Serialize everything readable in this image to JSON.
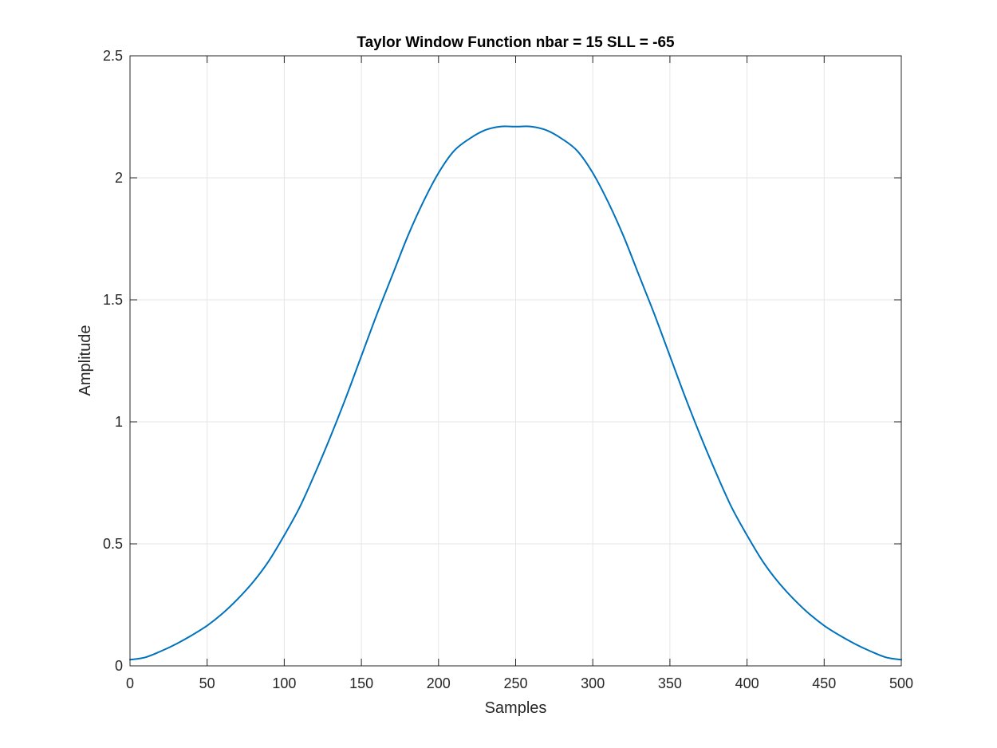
{
  "chart_data": {
    "type": "line",
    "title": "Taylor Window Function nbar = 15 SLL = -65",
    "xlabel": "Samples",
    "ylabel": "Amplitude",
    "xlim": [
      0,
      500
    ],
    "ylim": [
      0,
      2.5
    ],
    "xticks": [
      0,
      50,
      100,
      150,
      200,
      250,
      300,
      350,
      400,
      450,
      500
    ],
    "yticks": [
      0,
      0.5,
      1,
      1.5,
      2,
      2.5
    ],
    "xtick_labels": [
      "0",
      "50",
      "100",
      "150",
      "200",
      "250",
      "300",
      "350",
      "400",
      "450",
      "500"
    ],
    "ytick_labels": [
      "0",
      "0.5",
      "1",
      "1.5",
      "2",
      "2.5"
    ],
    "grid": true,
    "legend": "none",
    "series": [
      {
        "color": "#0072BD",
        "x": [
          0,
          10,
          20,
          30,
          40,
          50,
          60,
          70,
          80,
          90,
          100,
          110,
          120,
          130,
          140,
          150,
          160,
          170,
          180,
          190,
          200,
          210,
          220,
          230,
          240,
          250,
          260,
          270,
          280,
          290,
          300,
          310,
          320,
          330,
          340,
          350,
          360,
          370,
          380,
          390,
          400,
          410,
          420,
          430,
          440,
          450,
          460,
          470,
          480,
          490,
          500
        ],
        "y": [
          0.025,
          0.035,
          0.06,
          0.09,
          0.125,
          0.165,
          0.215,
          0.275,
          0.345,
          0.43,
          0.535,
          0.65,
          0.79,
          0.94,
          1.1,
          1.27,
          1.44,
          1.6,
          1.76,
          1.9,
          2.02,
          2.11,
          2.16,
          2.195,
          2.21,
          2.21,
          2.21,
          2.195,
          2.16,
          2.11,
          2.02,
          1.9,
          1.76,
          1.6,
          1.44,
          1.27,
          1.1,
          0.94,
          0.79,
          0.65,
          0.535,
          0.43,
          0.345,
          0.275,
          0.215,
          0.165,
          0.125,
          0.09,
          0.06,
          0.035,
          0.025
        ]
      }
    ]
  },
  "colors": {
    "line": "#0072BD",
    "axes": "#262626",
    "grid": "#e6e6e6",
    "background": "#ffffff"
  }
}
